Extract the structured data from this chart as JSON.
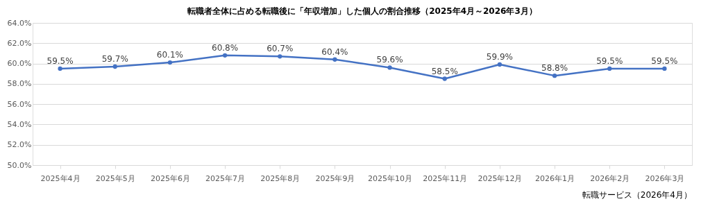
{
  "chart_data": {
    "type": "line",
    "title": "転職者全体に占める転職後に「年収増加」した個人の割合推移（2025年4月～2026年3月）",
    "categories": [
      "2025年4月",
      "2025年5月",
      "2025年6月",
      "2025年7月",
      "2025年8月",
      "2025年9月",
      "2025年10月",
      "2025年11月",
      "2025年12月",
      "2026年1月",
      "2026年2月",
      "2026年3月"
    ],
    "series": [
      {
        "color": "#4472c4",
        "values": [
          59.5,
          59.7,
          60.1,
          60.8,
          60.7,
          60.4,
          59.6,
          58.5,
          59.9,
          58.8,
          59.5,
          59.5
        ],
        "value_labels": [
          "59.5%",
          "59.7%",
          "60.1%",
          "60.8%",
          "60.7%",
          "60.4%",
          "59.6%",
          "58.5%",
          "59.9%",
          "58.8%",
          "59.5%",
          "59.5%"
        ]
      }
    ],
    "ylim": [
      50,
      64
    ],
    "yticks": [
      {
        "value": 50,
        "label": "50.0%"
      },
      {
        "value": 52,
        "label": "52.0%"
      },
      {
        "value": 54,
        "label": "54.0%"
      },
      {
        "value": 56,
        "label": "56.0%"
      },
      {
        "value": 58,
        "label": "58.0%"
      },
      {
        "value": 60,
        "label": "60.0%"
      },
      {
        "value": 62,
        "label": "62.0%"
      },
      {
        "value": 64,
        "label": "64.0%"
      }
    ],
    "grid": "y",
    "marker": "circle",
    "line_style": "solid",
    "annotations": [
      "転職サービス（2026年4月）"
    ]
  }
}
